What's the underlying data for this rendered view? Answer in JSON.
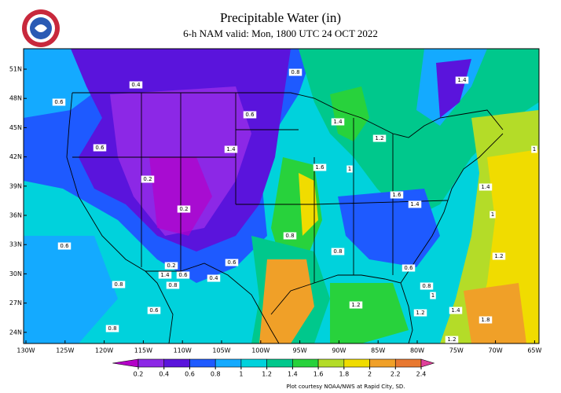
{
  "title": "Precipitable Water (in)",
  "subtitle": "6-h NAM valid: Mon, 1800 UTC 24 OCT 2022",
  "latitude_labels": [
    "51N",
    "48N",
    "45N",
    "42N",
    "39N",
    "36N",
    "33N",
    "30N",
    "27N",
    "24N"
  ],
  "longitude_labels": [
    "130W",
    "125W",
    "120W",
    "115W",
    "110W",
    "105W",
    "100W",
    "95W",
    "90W",
    "85W",
    "80W",
    "75W",
    "70W",
    "65W"
  ],
  "colorbar": {
    "ticks": [
      0.2,
      0.4,
      0.6,
      0.8,
      1,
      1.2,
      1.4,
      1.6,
      1.8,
      2,
      2.2,
      2.4
    ],
    "colors": [
      "#b400c8",
      "#8c28e6",
      "#5a14dc",
      "#1e5aff",
      "#14aaff",
      "#00d2dc",
      "#00c88c",
      "#28d23c",
      "#b4dc28",
      "#f0dc00",
      "#f0a028",
      "#e87830",
      "#e0409a"
    ]
  },
  "contour_labels": [
    "0.4",
    "0.6",
    "0.8",
    "1.4",
    "0.6",
    "1.4",
    "1.2",
    "0.6",
    "1.4",
    "1",
    "1.6",
    "1",
    "0.2",
    "1.6",
    "1.4",
    "0.2",
    "1.4",
    "1",
    "0.8",
    "0.6",
    "0.8",
    "1.2",
    "0.2",
    "1.4",
    "0.6",
    "0.4",
    "0.6",
    "0.8",
    "0.8",
    "0.6",
    "0.8",
    "1",
    "1.2",
    "0.6",
    "1.2",
    "1.4",
    "1.8",
    "0.8",
    "1.2"
  ],
  "credit": "Plot courtesy NOAA/NWS at Rapid City, SD."
}
